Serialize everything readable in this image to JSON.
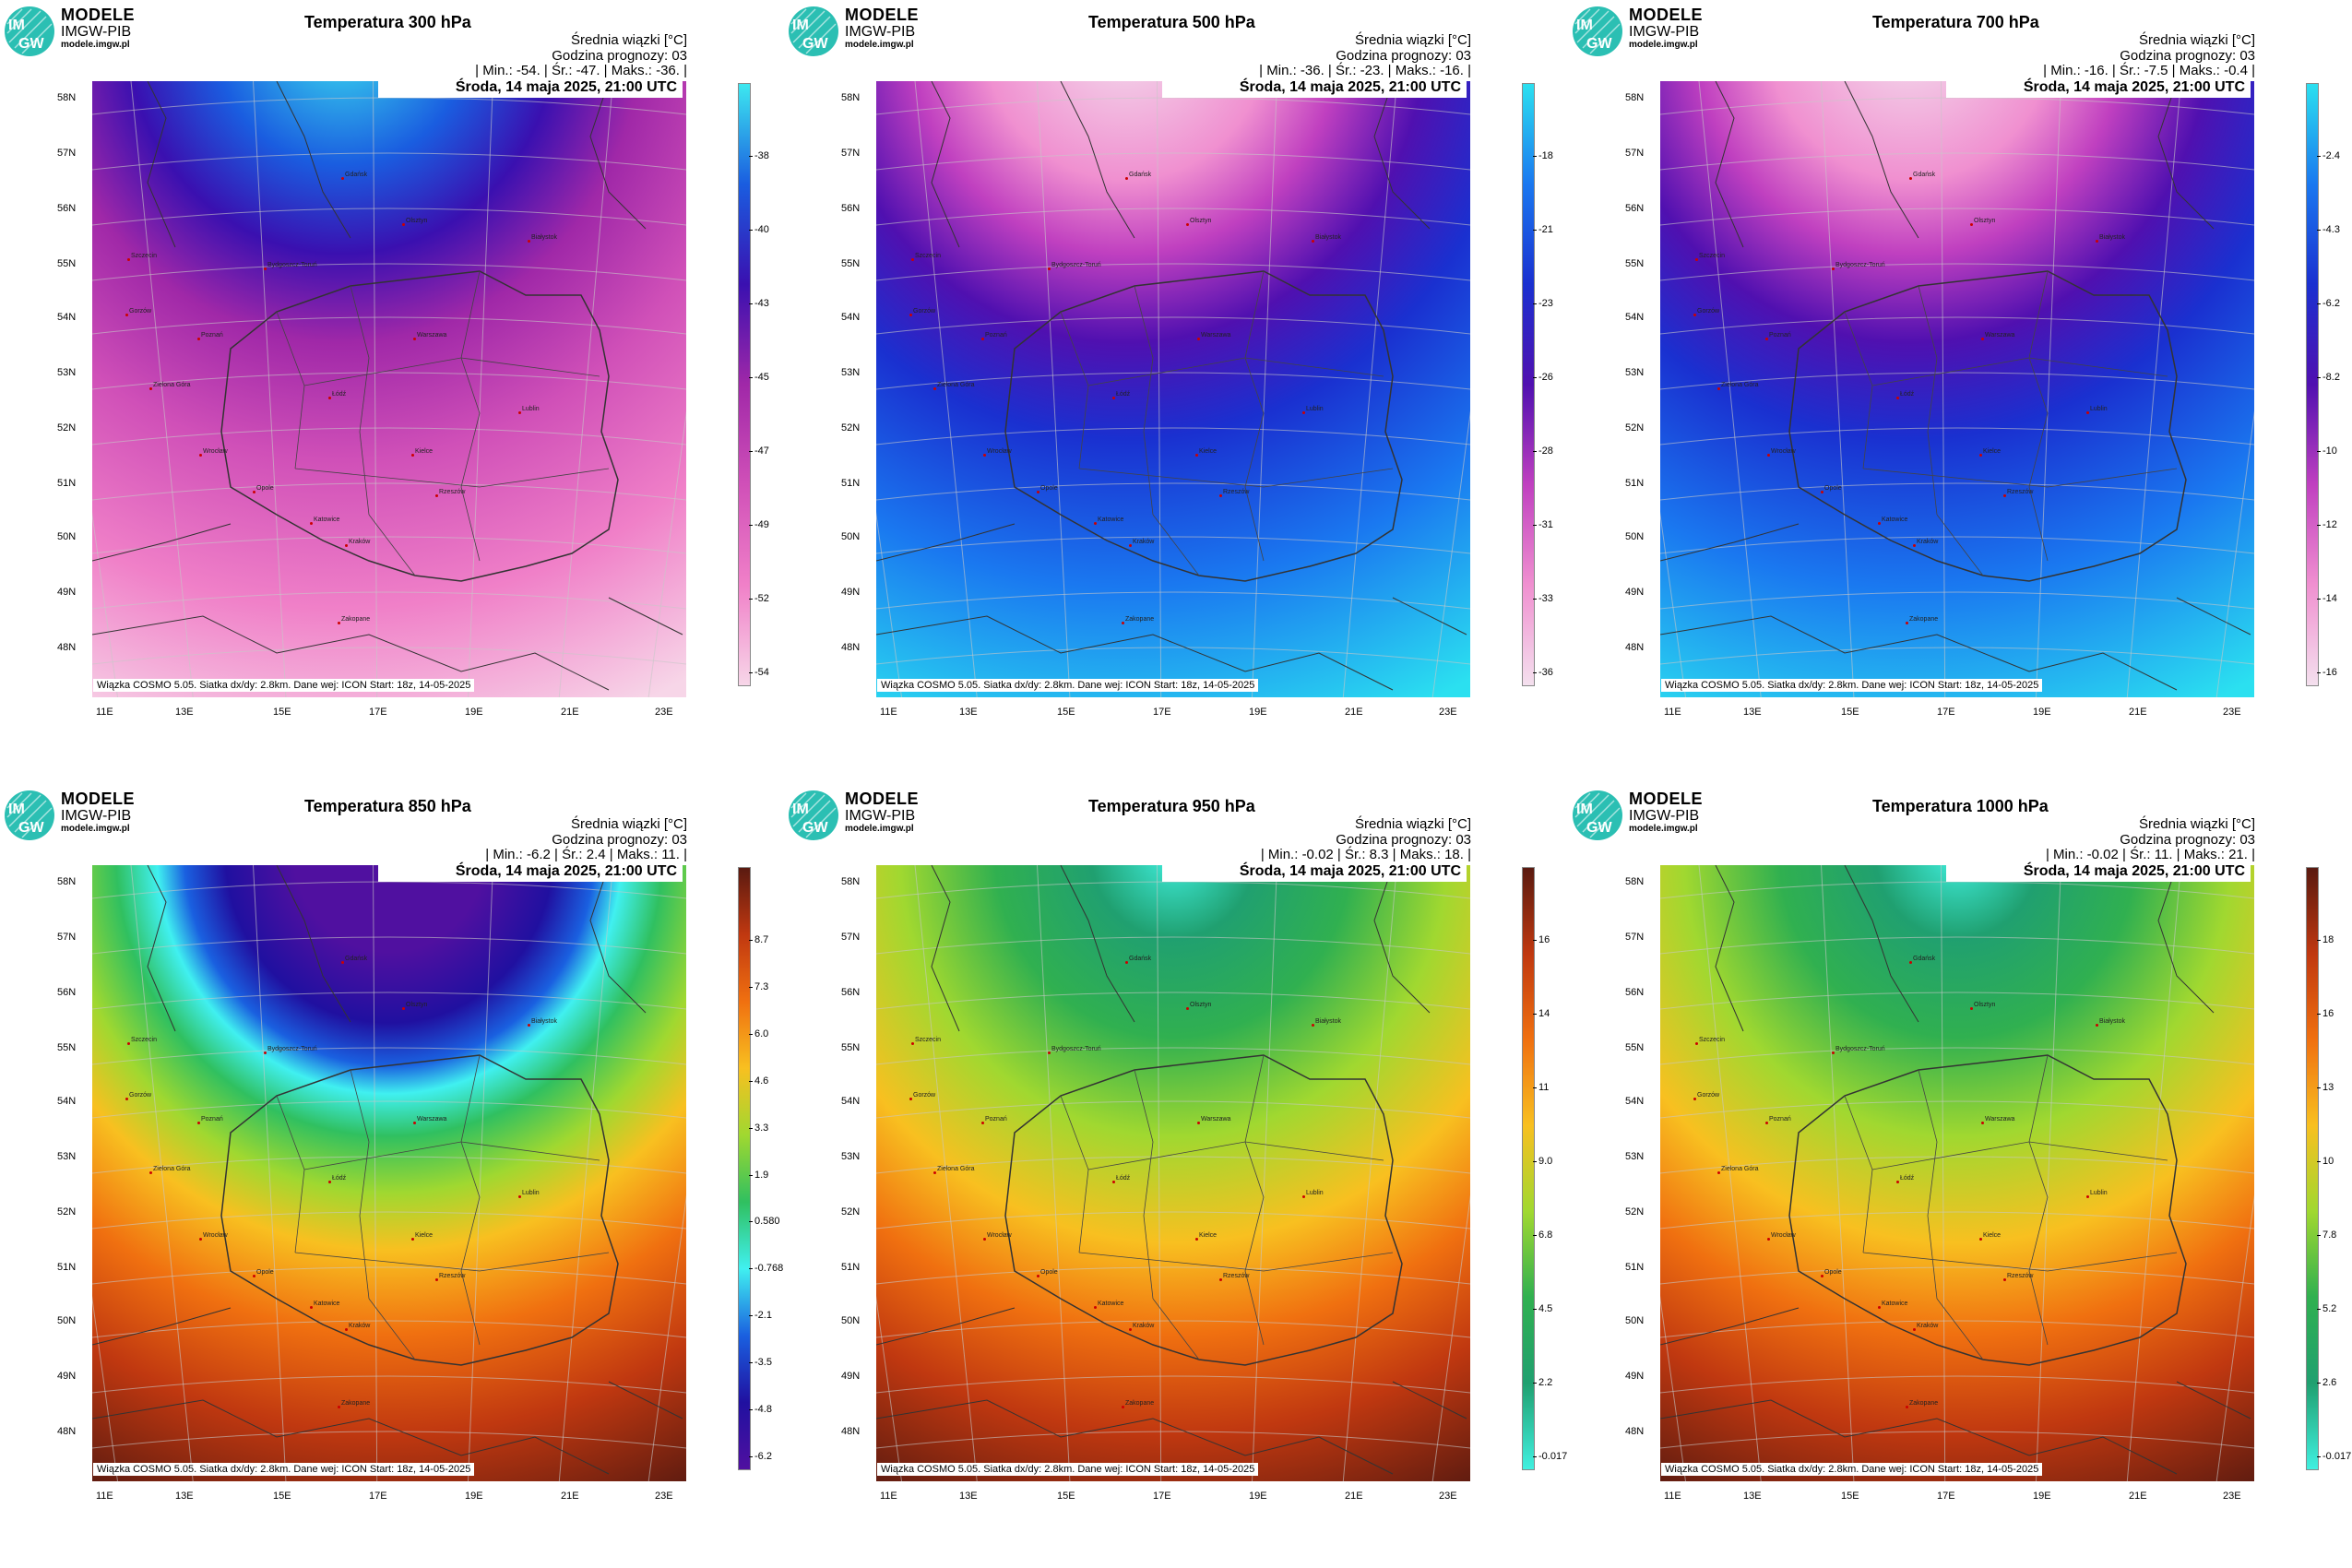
{
  "brand": {
    "line1": "MODELE",
    "line2": "IMGW-PIB",
    "line3": "modele.imgw.pl",
    "logo_text_top": "IM",
    "logo_text_bottom": "GW",
    "logo_color": "#2bbfb3"
  },
  "common": {
    "subtitle": "Średnia wiązki [°C]",
    "forecast_hour": "Godzina prognozy: 03",
    "date": "Środa, 14 maja 2025, 21:00 UTC",
    "footer": "Wiązka COSMO 5.05. Siatka dx/dy: 2.8km. Dane wej: ICON Start: 18z, 14-05-2025",
    "lat_labels": [
      "58N",
      "57N",
      "56N",
      "55N",
      "54N",
      "53N",
      "52N",
      "51N",
      "50N",
      "49N",
      "48N"
    ],
    "lon_labels": [
      "11E",
      "13E",
      "15E",
      "17E",
      "19E",
      "21E",
      "23E"
    ],
    "cities": [
      "Gdańsk",
      "Olsztyn",
      "Szczecin",
      "Bydgoszcz-Toruń",
      "Białystok",
      "Gorzów",
      "Poznań",
      "Warszawa",
      "Zielona Góra",
      "Łódź",
      "Lublin",
      "Wrocław",
      "Kielce",
      "Opole",
      "Katowice",
      "Kraków",
      "Rzeszów",
      "Zakopane"
    ]
  },
  "panels": [
    {
      "title": "Temperatura 300 hPa",
      "stats": "| Min.:    -54. | Śr.:    -47. | Maks.:    -36. |",
      "colorbar_ticks": [
        "-38",
        "-40",
        "-43",
        "-45",
        "-47",
        "-49",
        "-52",
        "-54"
      ],
      "palette": "cold",
      "colors": [
        "#3de8f0",
        "#1a5de0",
        "#3a10b0",
        "#a028a8",
        "#d050b8",
        "#f080c8",
        "#f7d6e8"
      ]
    },
    {
      "title": "Temperatura 500 hPa",
      "stats": "| Min.:    -36. | Śr.:    -23. | Maks.:    -16. |",
      "colorbar_ticks": [
        "-18",
        "-21",
        "-23",
        "-26",
        "-28",
        "-31",
        "-33",
        "-36"
      ],
      "palette": "cold",
      "colors": [
        "#2be0f0",
        "#1a78f0",
        "#1a30d0",
        "#5010b0",
        "#c040c0",
        "#f090d0",
        "#f4e0ee"
      ]
    },
    {
      "title": "Temperatura 700 hPa",
      "stats": "| Min.:    -16. | Śr.:    -7.5 | Maks.:    -0.4 |",
      "colorbar_ticks": [
        "-2.4",
        "-4.3",
        "-6.2",
        "-8.2",
        "-10",
        "-12",
        "-14",
        "-16"
      ],
      "palette": "cold",
      "colors": [
        "#2be0f0",
        "#1a78f0",
        "#1a30d0",
        "#5010b0",
        "#c040c0",
        "#f090d0",
        "#f4e0ee"
      ]
    },
    {
      "title": "Temperatura 850 hPa",
      "stats": "| Min.:    -6.2 | Śr.:    2.4 | Maks.:    11. |",
      "colorbar_ticks": [
        "8.7",
        "7.3",
        "6.0",
        "4.6",
        "3.3",
        "1.9",
        "0.580",
        "-0.768",
        "-2.1",
        "-3.5",
        "-4.8",
        "-6.2"
      ],
      "palette": "warm",
      "colors": [
        "#5a1a10",
        "#c03810",
        "#f07010",
        "#f8c020",
        "#a0d830",
        "#30c060",
        "#40f0f0",
        "#1a60e0",
        "#2010a0",
        "#5010a0"
      ]
    },
    {
      "title": "Temperatura 950 hPa",
      "stats": "| Min.:    -0.02 | Śr.:    8.3 | Maks.:    18. |",
      "colorbar_ticks": [
        "16",
        "14",
        "11",
        "9.0",
        "6.8",
        "4.5",
        "2.2",
        "-0.017"
      ],
      "palette": "warm",
      "colors": [
        "#5a1a10",
        "#c03810",
        "#f07010",
        "#f8c020",
        "#a0d830",
        "#30b050",
        "#20a070",
        "#40f0e0"
      ]
    },
    {
      "title": "Temperatura 1000 hPa",
      "stats": "| Min.:    -0.02 | Śr.:    11. | Maks.:    21. |",
      "colorbar_ticks": [
        "18",
        "16",
        "13",
        "10",
        "7.8",
        "5.2",
        "2.6",
        "-0.017"
      ],
      "palette": "warm",
      "colors": [
        "#5a1a10",
        "#c03810",
        "#f07010",
        "#f8c020",
        "#a0d830",
        "#30b050",
        "#20a070",
        "#40f0e0"
      ]
    }
  ]
}
